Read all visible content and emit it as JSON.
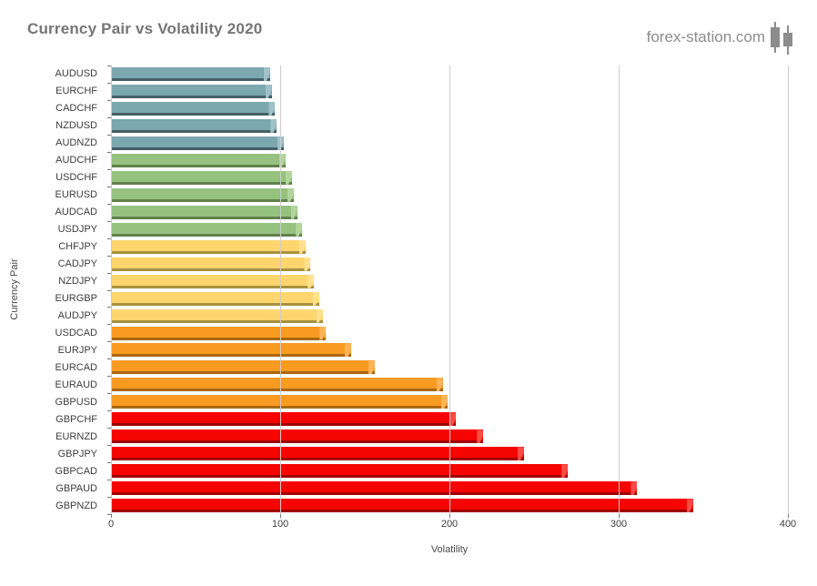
{
  "header": {
    "title": "Currency Pair vs Volatility 2020",
    "brand": "forex-station.com",
    "brand_icon": "candlestick-chart-icon",
    "title_color": "#757575",
    "brand_color": "#8c8c8c"
  },
  "chart_data": {
    "type": "bar",
    "orientation": "horizontal",
    "title": "Currency Pair vs Volatility 2020",
    "xlabel": "Volatility",
    "ylabel": "Currency Pair",
    "xlim": [
      0,
      400
    ],
    "x_ticks": [
      0,
      100,
      200,
      300,
      400
    ],
    "grid": true,
    "gridline_color": "#cccccc",
    "legend": "none",
    "categories": [
      "AUDUSD",
      "EURCHF",
      "CADCHF",
      "NZDUSD",
      "AUDNZD",
      "AUDCHF",
      "USDCHF",
      "EURUSD",
      "AUDCAD",
      "USDJPY",
      "CHFJPY",
      "CADJPY",
      "NZDJPY",
      "EURGBP",
      "AUDJPY",
      "USDCAD",
      "EURJPY",
      "EURCAD",
      "EURAUD",
      "GBPUSD",
      "GBPCHF",
      "EURNZD",
      "GBPJPY",
      "GBPCAD",
      "GBPAUD",
      "GBPNZD"
    ],
    "values": [
      94,
      95,
      97,
      98,
      102,
      103,
      107,
      108,
      110,
      113,
      115,
      118,
      120,
      123,
      125,
      127,
      142,
      156,
      196,
      199,
      204,
      220,
      244,
      270,
      311,
      344
    ],
    "color_groups": [
      "teal",
      "teal",
      "teal",
      "teal",
      "teal",
      "green",
      "green",
      "green",
      "green",
      "green",
      "yellow",
      "yellow",
      "yellow",
      "yellow",
      "yellow",
      "orange",
      "orange",
      "orange",
      "orange",
      "orange",
      "red",
      "red",
      "red",
      "red",
      "red",
      "red"
    ],
    "palette": {
      "teal": {
        "main": "#7BA7AF",
        "dark": "#455F66",
        "cap": "#9FC1C7"
      },
      "green": {
        "main": "#95C27E",
        "dark": "#61814E",
        "cap": "#B2D59C"
      },
      "yellow": {
        "main": "#FFD56D",
        "dark": "#A8913F",
        "cap": "#FFE190"
      },
      "orange": {
        "main": "#F99A21",
        "dark": "#A9680F",
        "cap": "#FBB559"
      },
      "red": {
        "main": "#F50400",
        "dark": "#A00200",
        "cap": "#FA4B45"
      }
    }
  }
}
